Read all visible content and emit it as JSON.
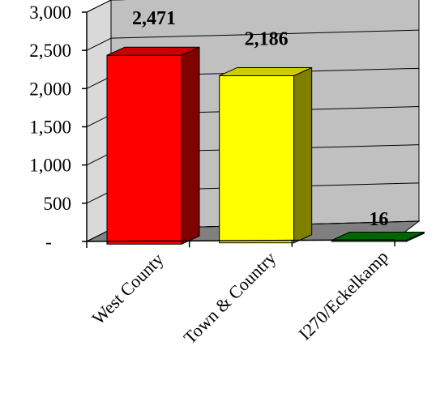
{
  "chart_data": {
    "type": "bar",
    "categories": [
      "West County",
      "Town & Country",
      "I270/Eckelkamp"
    ],
    "values": [
      2471,
      2186,
      16
    ],
    "value_labels": [
      "2,471",
      "2,186",
      "16"
    ],
    "title": "",
    "xlabel": "",
    "ylabel": "",
    "ylim": [
      0,
      3000
    ],
    "yticks": [
      0,
      500,
      1000,
      1500,
      2000,
      2500,
      3000
    ],
    "ytick_labels": [
      "-",
      "500",
      "1,000",
      "1,500",
      "2,000",
      "2,500",
      "3,000"
    ],
    "grid": true,
    "legend": "none",
    "style": "3d-column",
    "colors": {
      "front": [
        "#ff0000",
        "#ffff00",
        "#00a000"
      ],
      "top": [
        "#cc0000",
        "#cccc00",
        "#006600"
      ],
      "side": [
        "#800000",
        "#808000",
        "#004000"
      ],
      "wall": "#c0c0c0",
      "floor": "#808080"
    }
  }
}
